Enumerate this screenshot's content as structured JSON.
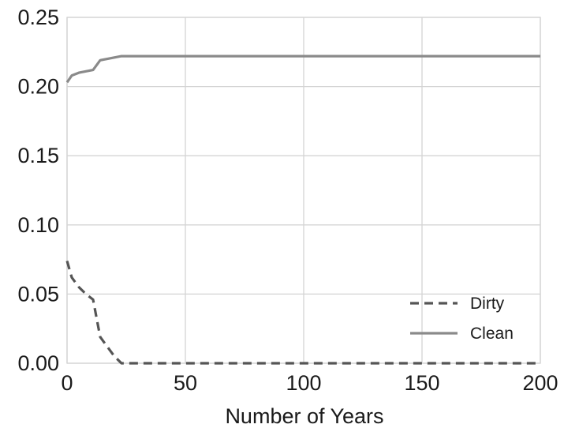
{
  "chart_data": {
    "type": "line",
    "xlabel": "Number of Years",
    "ylabel": "",
    "xlim": [
      0,
      200
    ],
    "ylim": [
      0,
      0.25
    ],
    "xticks": [
      0,
      50,
      100,
      150,
      200
    ],
    "xtick_labels": [
      "0",
      "50",
      "100",
      "150",
      "200"
    ],
    "yticks": [
      0,
      0.05,
      0.1,
      0.15,
      0.2,
      0.25
    ],
    "ytick_labels": [
      "0.00",
      "0.05",
      "0.10",
      "0.15",
      "0.20",
      "0.25"
    ],
    "grid": true,
    "legend_position": "bottom-right",
    "series": [
      {
        "name": "Dirty",
        "style": "dashed",
        "color": "#555555",
        "x": [
          0,
          2,
          5,
          8,
          11,
          14,
          17,
          20,
          23,
          30,
          50,
          100,
          150,
          200
        ],
        "y": [
          0.074,
          0.062,
          0.055,
          0.05,
          0.046,
          0.019,
          0.012,
          0.005,
          0.0,
          0.0,
          0.0,
          0.0,
          0.0,
          0.0
        ]
      },
      {
        "name": "Clean",
        "style": "solid",
        "color": "#8a8a8a",
        "x": [
          0,
          2,
          5,
          8,
          11,
          14,
          17,
          20,
          23,
          30,
          50,
          100,
          150,
          200
        ],
        "y": [
          0.203,
          0.208,
          0.21,
          0.211,
          0.212,
          0.219,
          0.22,
          0.221,
          0.222,
          0.222,
          0.222,
          0.222,
          0.222,
          0.222
        ]
      }
    ]
  }
}
